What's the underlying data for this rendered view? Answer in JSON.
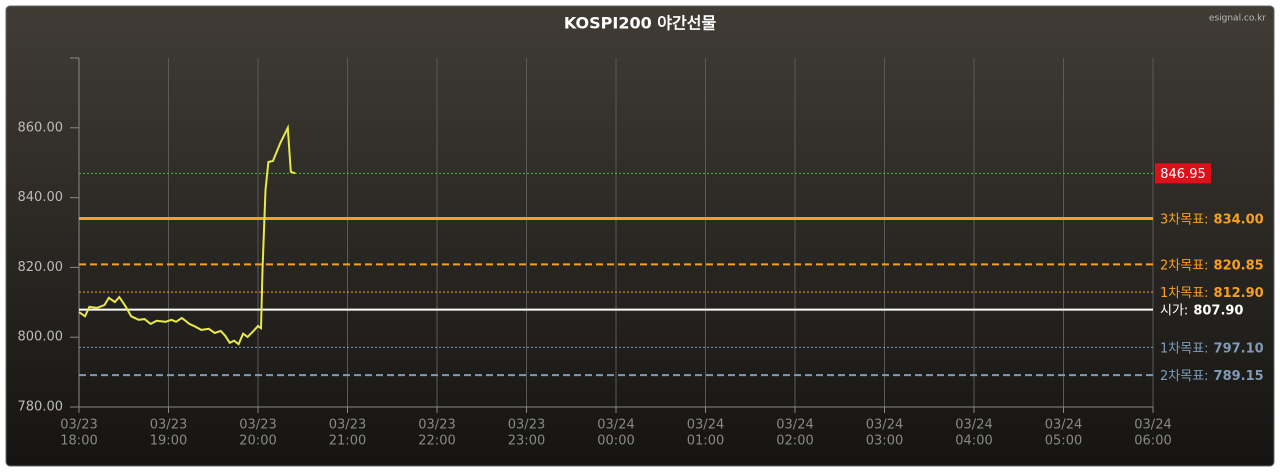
{
  "chart_data": {
    "type": "line",
    "title": "KOSPI200 야간선물",
    "watermark": "esignal.co.kr",
    "color": "#e8e84a",
    "x": [
      "03/23 18:00",
      "03/23 18:04",
      "03/23 18:07",
      "03/23 18:12",
      "03/23 18:17",
      "03/23 18:20",
      "03/23 18:24",
      "03/23 18:27",
      "03/23 18:31",
      "03/23 18:35",
      "03/23 18:40",
      "03/23 18:44",
      "03/23 18:48",
      "03/23 18:52",
      "03/23 18:58",
      "03/23 19:02",
      "03/23 19:05",
      "03/23 19:09",
      "03/23 19:14",
      "03/23 19:18",
      "03/23 19:22",
      "03/23 19:27",
      "03/23 19:31",
      "03/23 19:35",
      "03/23 19:38",
      "03/23 19:41",
      "03/23 19:44",
      "03/23 19:47",
      "03/23 19:50",
      "03/23 19:53",
      "03/23 19:57",
      "03/23 20:00",
      "03/23 20:02",
      "03/23 20:03",
      "03/23 20:05",
      "03/23 20:07",
      "03/23 20:10",
      "03/23 20:15",
      "03/23 20:20",
      "03/23 20:22",
      "03/23 20:25"
    ],
    "values": [
      807.2,
      806,
      808.7,
      808.4,
      809.2,
      811.3,
      810.1,
      811.5,
      809,
      806,
      805,
      805.2,
      803.8,
      804.7,
      804.4,
      805,
      804.4,
      805.5,
      803.8,
      803,
      802.1,
      802.4,
      801.2,
      801.8,
      800.4,
      798.4,
      799,
      798,
      801,
      800.1,
      801.8,
      803.2,
      802.6,
      819.3,
      842.2,
      850.2,
      850.5,
      855.7,
      860,
      847.4,
      846.95
    ],
    "xlim": [
      "03/23 18:00",
      "03/24 06:00"
    ],
    "xticks": [
      {
        "date": "03/23",
        "time": "18:00"
      },
      {
        "date": "03/23",
        "time": "19:00"
      },
      {
        "date": "03/23",
        "time": "20:00"
      },
      {
        "date": "03/23",
        "time": "21:00"
      },
      {
        "date": "03/23",
        "time": "22:00"
      },
      {
        "date": "03/23",
        "time": "23:00"
      },
      {
        "date": "03/24",
        "time": "00:00"
      },
      {
        "date": "03/24",
        "time": "01:00"
      },
      {
        "date": "03/24",
        "time": "02:00"
      },
      {
        "date": "03/24",
        "time": "03:00"
      },
      {
        "date": "03/24",
        "time": "04:00"
      },
      {
        "date": "03/24",
        "time": "05:00"
      },
      {
        "date": "03/24",
        "time": "06:00"
      }
    ],
    "ylim": [
      780,
      880
    ],
    "yticks": [
      {
        "value": 780,
        "label": "780.00"
      },
      {
        "value": 800,
        "label": "800.00"
      },
      {
        "value": 820,
        "label": "820.00"
      },
      {
        "value": 840,
        "label": "840.00"
      },
      {
        "value": 860,
        "label": "860.00"
      }
    ],
    "grid": "x",
    "levels": [
      {
        "value": 846.95,
        "value_label": "846.95",
        "color": "#3fb83f",
        "style": "dotted",
        "label_bg": "#e0101a"
      },
      {
        "name": "3차목표:",
        "value": 834,
        "value_label": "834.00",
        "color": "#f7a01d",
        "style": "solid"
      },
      {
        "name": "2차목표:",
        "value": 820.85,
        "value_label": "820.85",
        "color": "#f7a01d",
        "style": "dashed"
      },
      {
        "name": "1차목표:",
        "value": 812.9,
        "value_label": "812.90",
        "color": "#f7a01d",
        "style": "dotted"
      },
      {
        "name": "시가:",
        "value": 807.9,
        "value_label": "807.90",
        "color": "#ffffff",
        "style": "solid"
      },
      {
        "name": "1차목표:",
        "value": 797.1,
        "value_label": "797.10",
        "color": "#7f9ab8",
        "style": "dotted"
      },
      {
        "name": "2차목표:",
        "value": 789.15,
        "value_label": "789.15",
        "color": "#7f9ab8",
        "style": "dashed"
      }
    ]
  }
}
